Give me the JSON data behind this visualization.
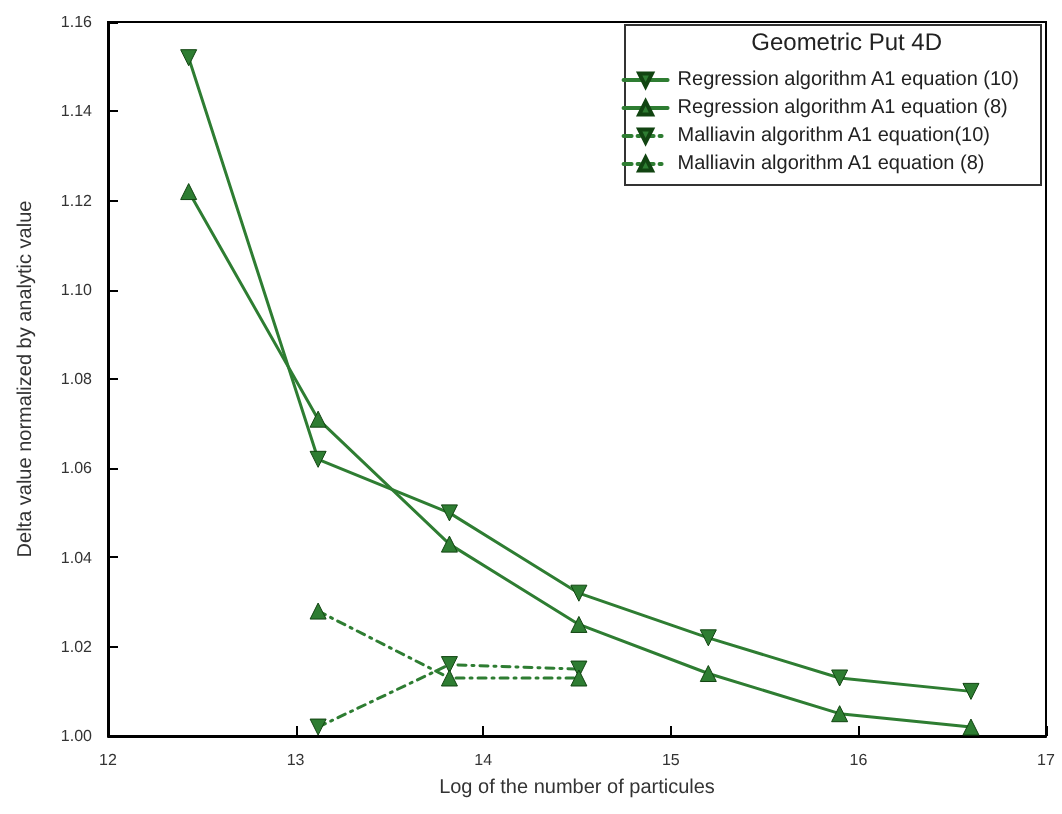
{
  "chart_data": {
    "type": "line",
    "xlabel": "Log of the number of particules",
    "ylabel": "Delta value normalized by analytic value",
    "legend_title": "Geometric Put 4D",
    "legend": "top right",
    "grid": false,
    "xlim": [
      12,
      17
    ],
    "xticks": [
      12,
      13,
      14,
      15,
      16,
      17
    ],
    "ylim": [
      1.0,
      1.16
    ],
    "yticks": [
      {
        "value": 1.0,
        "label": "1.00"
      },
      {
        "value": 1.02,
        "label": "1.02"
      },
      {
        "value": 1.04,
        "label": "1.04"
      },
      {
        "value": 1.06,
        "label": "1.06"
      },
      {
        "value": 1.08,
        "label": "1.08"
      },
      {
        "value": 1.1,
        "label": "1.10"
      },
      {
        "value": 1.12,
        "label": "1.12"
      },
      {
        "value": 1.14,
        "label": "1.14"
      },
      {
        "value": 1.16,
        "label": "1.16"
      }
    ],
    "series": [
      {
        "name": "Regression algorithm A1 equation (10)",
        "color": "#2e7d32",
        "marker": "triangle-down",
        "line_style": "solid",
        "x": [
          12.43,
          13.12,
          13.82,
          14.51,
          15.2,
          15.9,
          16.6
        ],
        "values": [
          1.152,
          1.062,
          1.05,
          1.032,
          1.022,
          1.013,
          1.01
        ]
      },
      {
        "name": "Regression algorithm A1 equation (8)",
        "color": "#2e7d32",
        "marker": "triangle",
        "line_style": "solid",
        "x": [
          12.43,
          13.12,
          13.82,
          14.51,
          15.2,
          15.9,
          16.6
        ],
        "values": [
          1.122,
          1.071,
          1.043,
          1.025,
          1.014,
          1.005,
          1.002
        ]
      },
      {
        "name": "Malliavin algorithm A1 equation(10)",
        "color": "#2e7d32",
        "marker": "triangle-down",
        "line_style": "dotted",
        "x": [
          13.12,
          13.82,
          14.51
        ],
        "values": [
          1.002,
          1.016,
          1.015
        ]
      },
      {
        "name": "Malliavin algorithm A1 equation (8)",
        "color": "#2e7d32",
        "marker": "triangle",
        "line_style": "dotted",
        "x": [
          13.12,
          13.82,
          14.51
        ],
        "values": [
          1.028,
          1.013,
          1.013
        ]
      }
    ]
  }
}
